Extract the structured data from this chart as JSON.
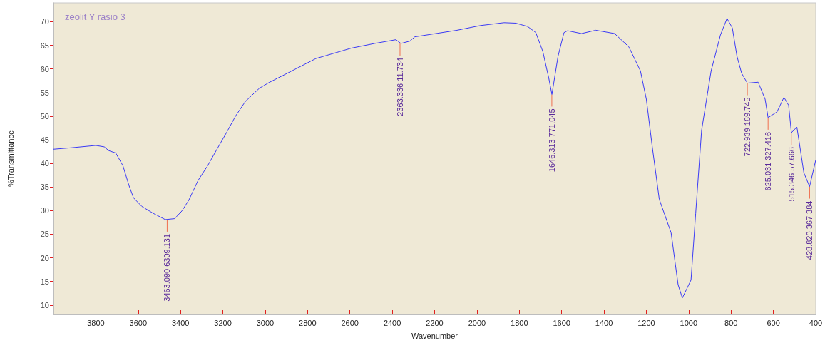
{
  "chart_data": {
    "type": "line",
    "title": "zeolit Y rasio 3",
    "xlabel": "Wavenumber",
    "ylabel": "%Transmittance",
    "x": [
      4000,
      3917,
      3800,
      3760,
      3739,
      3706,
      3672,
      3644,
      3622,
      3583,
      3528,
      3472,
      3428,
      3394,
      3361,
      3317,
      3272,
      3228,
      3183,
      3139,
      3094,
      3028,
      2983,
      2917,
      2761,
      2594,
      2483,
      2383,
      2359,
      2317,
      2294,
      2094,
      1983,
      1872,
      1817,
      1761,
      1722,
      1689,
      1661,
      1646,
      1617,
      1589,
      1572,
      1506,
      1439,
      1350,
      1283,
      1228,
      1200,
      1172,
      1139,
      1083,
      1050,
      1030,
      989,
      967,
      939,
      894,
      850,
      819,
      794,
      772,
      750,
      723,
      672,
      639,
      625,
      583,
      550,
      528,
      515,
      489,
      456,
      429,
      400
    ],
    "series": [
      {
        "color": "#3a3af5",
        "values": [
          43.0,
          43.3,
          43.8,
          43.5,
          42.7,
          42.2,
          39.5,
          35.4,
          32.7,
          30.9,
          29.4,
          28.1,
          28.3,
          29.9,
          32.2,
          36.4,
          39.5,
          43.0,
          46.5,
          50.1,
          53.1,
          55.9,
          57.1,
          58.6,
          62.2,
          64.4,
          65.4,
          66.2,
          65.4,
          65.9,
          66.8,
          68.2,
          69.2,
          69.8,
          69.7,
          69.0,
          67.7,
          63.7,
          58.1,
          54.6,
          62.7,
          67.7,
          68.1,
          67.5,
          68.2,
          67.5,
          64.7,
          59.6,
          53.6,
          43.5,
          32.4,
          25.3,
          14.3,
          11.5,
          15.3,
          29.4,
          47.0,
          59.6,
          67.2,
          70.7,
          68.7,
          62.7,
          59.1,
          57.0,
          57.2,
          53.6,
          49.7,
          50.9,
          54.0,
          52.3,
          46.5,
          47.7,
          38.0,
          35.1,
          40.7
        ]
      }
    ],
    "xlim": [
      4000,
      400
    ],
    "xticks": [
      3800,
      3600,
      3400,
      3200,
      3000,
      2800,
      2600,
      2400,
      2200,
      2000,
      1800,
      1600,
      1400,
      1200,
      1000,
      800,
      600,
      400
    ],
    "ylim": [
      8,
      74
    ],
    "yticks": [
      10,
      15,
      20,
      25,
      30,
      35,
      40,
      45,
      50,
      55,
      60,
      65,
      70
    ],
    "grid": false,
    "marker": "none",
    "line_style": "solid",
    "annotations": [
      {
        "text": "3463.090 6309.131",
        "x": 3463.09,
        "y": 28.1
      },
      {
        "text": "2363.336 11.734",
        "x": 2363.336,
        "y": 65.4
      },
      {
        "text": "1646.313 771.045",
        "x": 1646.313,
        "y": 54.6
      },
      {
        "text": "722.939 169.745",
        "x": 722.939,
        "y": 57.0
      },
      {
        "text": "625.031 327.416",
        "x": 625.031,
        "y": 49.7
      },
      {
        "text": "515.346 57.666",
        "x": 515.346,
        "y": 46.5
      },
      {
        "text": "428.820 367.384",
        "x": 428.82,
        "y": 35.1
      }
    ]
  }
}
